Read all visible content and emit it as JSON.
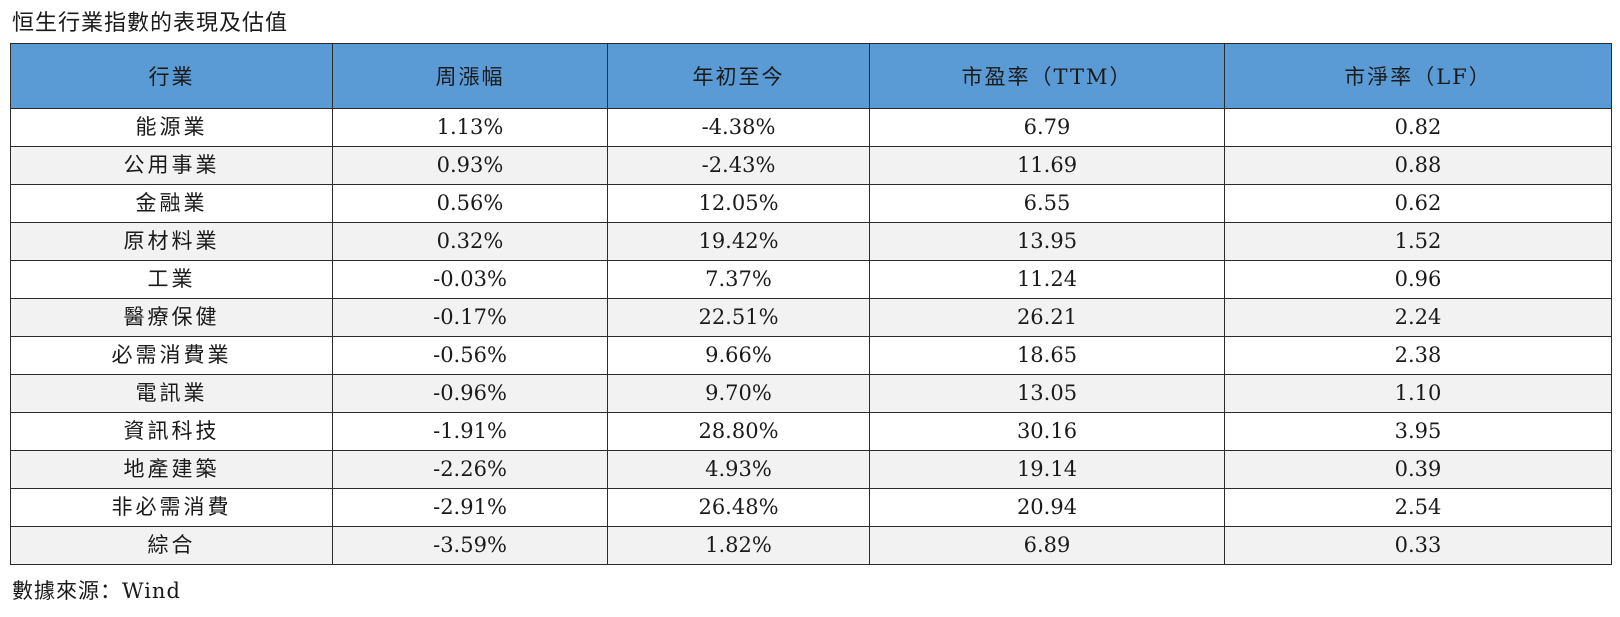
{
  "title": "恒生行業指數的表現及估值",
  "columns": [
    "行業",
    "周漲幅",
    "年初至今",
    "市盈率（TTM）",
    "市淨率（LF）"
  ],
  "rows": [
    {
      "sector": "能源業",
      "week_change": "1.13%",
      "ytd": "-4.38%",
      "pe_ttm": "6.79",
      "pb_lf": "0.82"
    },
    {
      "sector": "公用事業",
      "week_change": "0.93%",
      "ytd": "-2.43%",
      "pe_ttm": "11.69",
      "pb_lf": "0.88"
    },
    {
      "sector": "金融業",
      "week_change": "0.56%",
      "ytd": "12.05%",
      "pe_ttm": "6.55",
      "pb_lf": "0.62"
    },
    {
      "sector": "原材料業",
      "week_change": "0.32%",
      "ytd": "19.42%",
      "pe_ttm": "13.95",
      "pb_lf": "1.52"
    },
    {
      "sector": "工業",
      "week_change": "-0.03%",
      "ytd": "7.37%",
      "pe_ttm": "11.24",
      "pb_lf": "0.96"
    },
    {
      "sector": "醫療保健",
      "week_change": "-0.17%",
      "ytd": "22.51%",
      "pe_ttm": "26.21",
      "pb_lf": "2.24"
    },
    {
      "sector": "必需消費業",
      "week_change": "-0.56%",
      "ytd": "9.66%",
      "pe_ttm": "18.65",
      "pb_lf": "2.38"
    },
    {
      "sector": "電訊業",
      "week_change": "-0.96%",
      "ytd": "9.70%",
      "pe_ttm": "13.05",
      "pb_lf": "1.10"
    },
    {
      "sector": "資訊科技",
      "week_change": "-1.91%",
      "ytd": "28.80%",
      "pe_ttm": "30.16",
      "pb_lf": "3.95"
    },
    {
      "sector": "地產建築",
      "week_change": "-2.26%",
      "ytd": "4.93%",
      "pe_ttm": "19.14",
      "pb_lf": "0.39"
    },
    {
      "sector": "非必需消費",
      "week_change": "-2.91%",
      "ytd": "26.48%",
      "pe_ttm": "20.94",
      "pb_lf": "2.54"
    },
    {
      "sector": "綜合",
      "week_change": "-3.59%",
      "ytd": "1.82%",
      "pe_ttm": "6.89",
      "pb_lf": "0.33"
    }
  ],
  "source": "數據來源：Wind",
  "colors": {
    "header_background": "#5b9bd5",
    "stripe_background": "#f2f2f2",
    "border": "#2b2b2b"
  }
}
